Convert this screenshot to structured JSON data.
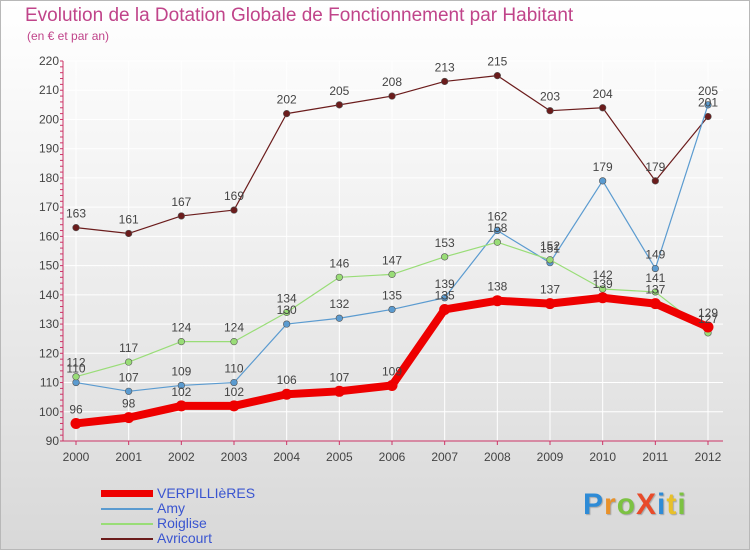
{
  "header": {
    "title": "Evolution de la Dotation Globale de Fonctionnement par Habitant",
    "subtitle": "(en € et par an)"
  },
  "logo": {
    "text": "ProXiti",
    "letters": [
      "P",
      "r",
      "o",
      "X",
      "i",
      "t",
      "i"
    ],
    "colors": [
      "#2e8bd6",
      "#e8912a",
      "#7cc242",
      "#e84b2a",
      "#2e8bd6",
      "#e8c02a",
      "#7cc242"
    ]
  },
  "colors": {
    "title": "#c0448a",
    "axis": "#cc3366",
    "grid": "#ffffff",
    "tick_text": "#444444",
    "label_text": "#444444"
  },
  "chart_data": {
    "type": "line",
    "title": "Evolution de la Dotation Globale de Fonctionnement par Habitant",
    "subtitle": "(en € et par an)",
    "xlabel": "",
    "ylabel": "",
    "x": [
      "2000",
      "2001",
      "2002",
      "2003",
      "2004",
      "2005",
      "2006",
      "2007",
      "2008",
      "2009",
      "2010",
      "2011",
      "2012"
    ],
    "ylim": [
      90,
      220
    ],
    "yticks": [
      90,
      100,
      110,
      120,
      130,
      140,
      150,
      160,
      170,
      180,
      190,
      200,
      210,
      220
    ],
    "grid": true,
    "legend_position": "bottom-left",
    "series": [
      {
        "name": "Avricourt",
        "color": "#6b1c1c",
        "values": [
          163,
          161,
          167,
          169,
          202,
          205,
          208,
          213,
          215,
          203,
          204,
          179,
          201
        ],
        "labels": [
          "163",
          "161",
          "167",
          "169",
          "202",
          "205",
          "208",
          "213",
          "215",
          "203",
          "204",
          "179",
          "201"
        ]
      },
      {
        "name": "Amy",
        "color": "#5b9bd0",
        "values": [
          110,
          107,
          109,
          110,
          130,
          132,
          135,
          139,
          162,
          151,
          179,
          149,
          205
        ],
        "labels": [
          "110",
          "107",
          "109",
          "110",
          "130",
          "132",
          "135",
          "139",
          "162",
          "151",
          "179",
          "149",
          "205"
        ]
      },
      {
        "name": "Roiglise",
        "color": "#99dd77",
        "values": [
          112,
          117,
          124,
          124,
          134,
          146,
          147,
          153,
          158,
          152,
          142,
          141,
          127
        ],
        "labels": [
          "112",
          "117",
          "124",
          "124",
          "134",
          "146",
          "147",
          "153",
          "158",
          "152",
          "142",
          "141",
          "127"
        ]
      },
      {
        "name": "VERPILLIèRES",
        "color": "#ee0000",
        "values": [
          96,
          98,
          102,
          102,
          106,
          107,
          109,
          135,
          138,
          137,
          139,
          137,
          129
        ],
        "labels": [
          "96",
          "98",
          "102",
          "102",
          "106",
          "107",
          "109",
          "135",
          "138",
          "137",
          "139",
          "137",
          "129"
        ]
      }
    ],
    "legend": [
      "VERPILLIèRES",
      "Amy",
      "Roiglise",
      "Avricourt"
    ]
  }
}
